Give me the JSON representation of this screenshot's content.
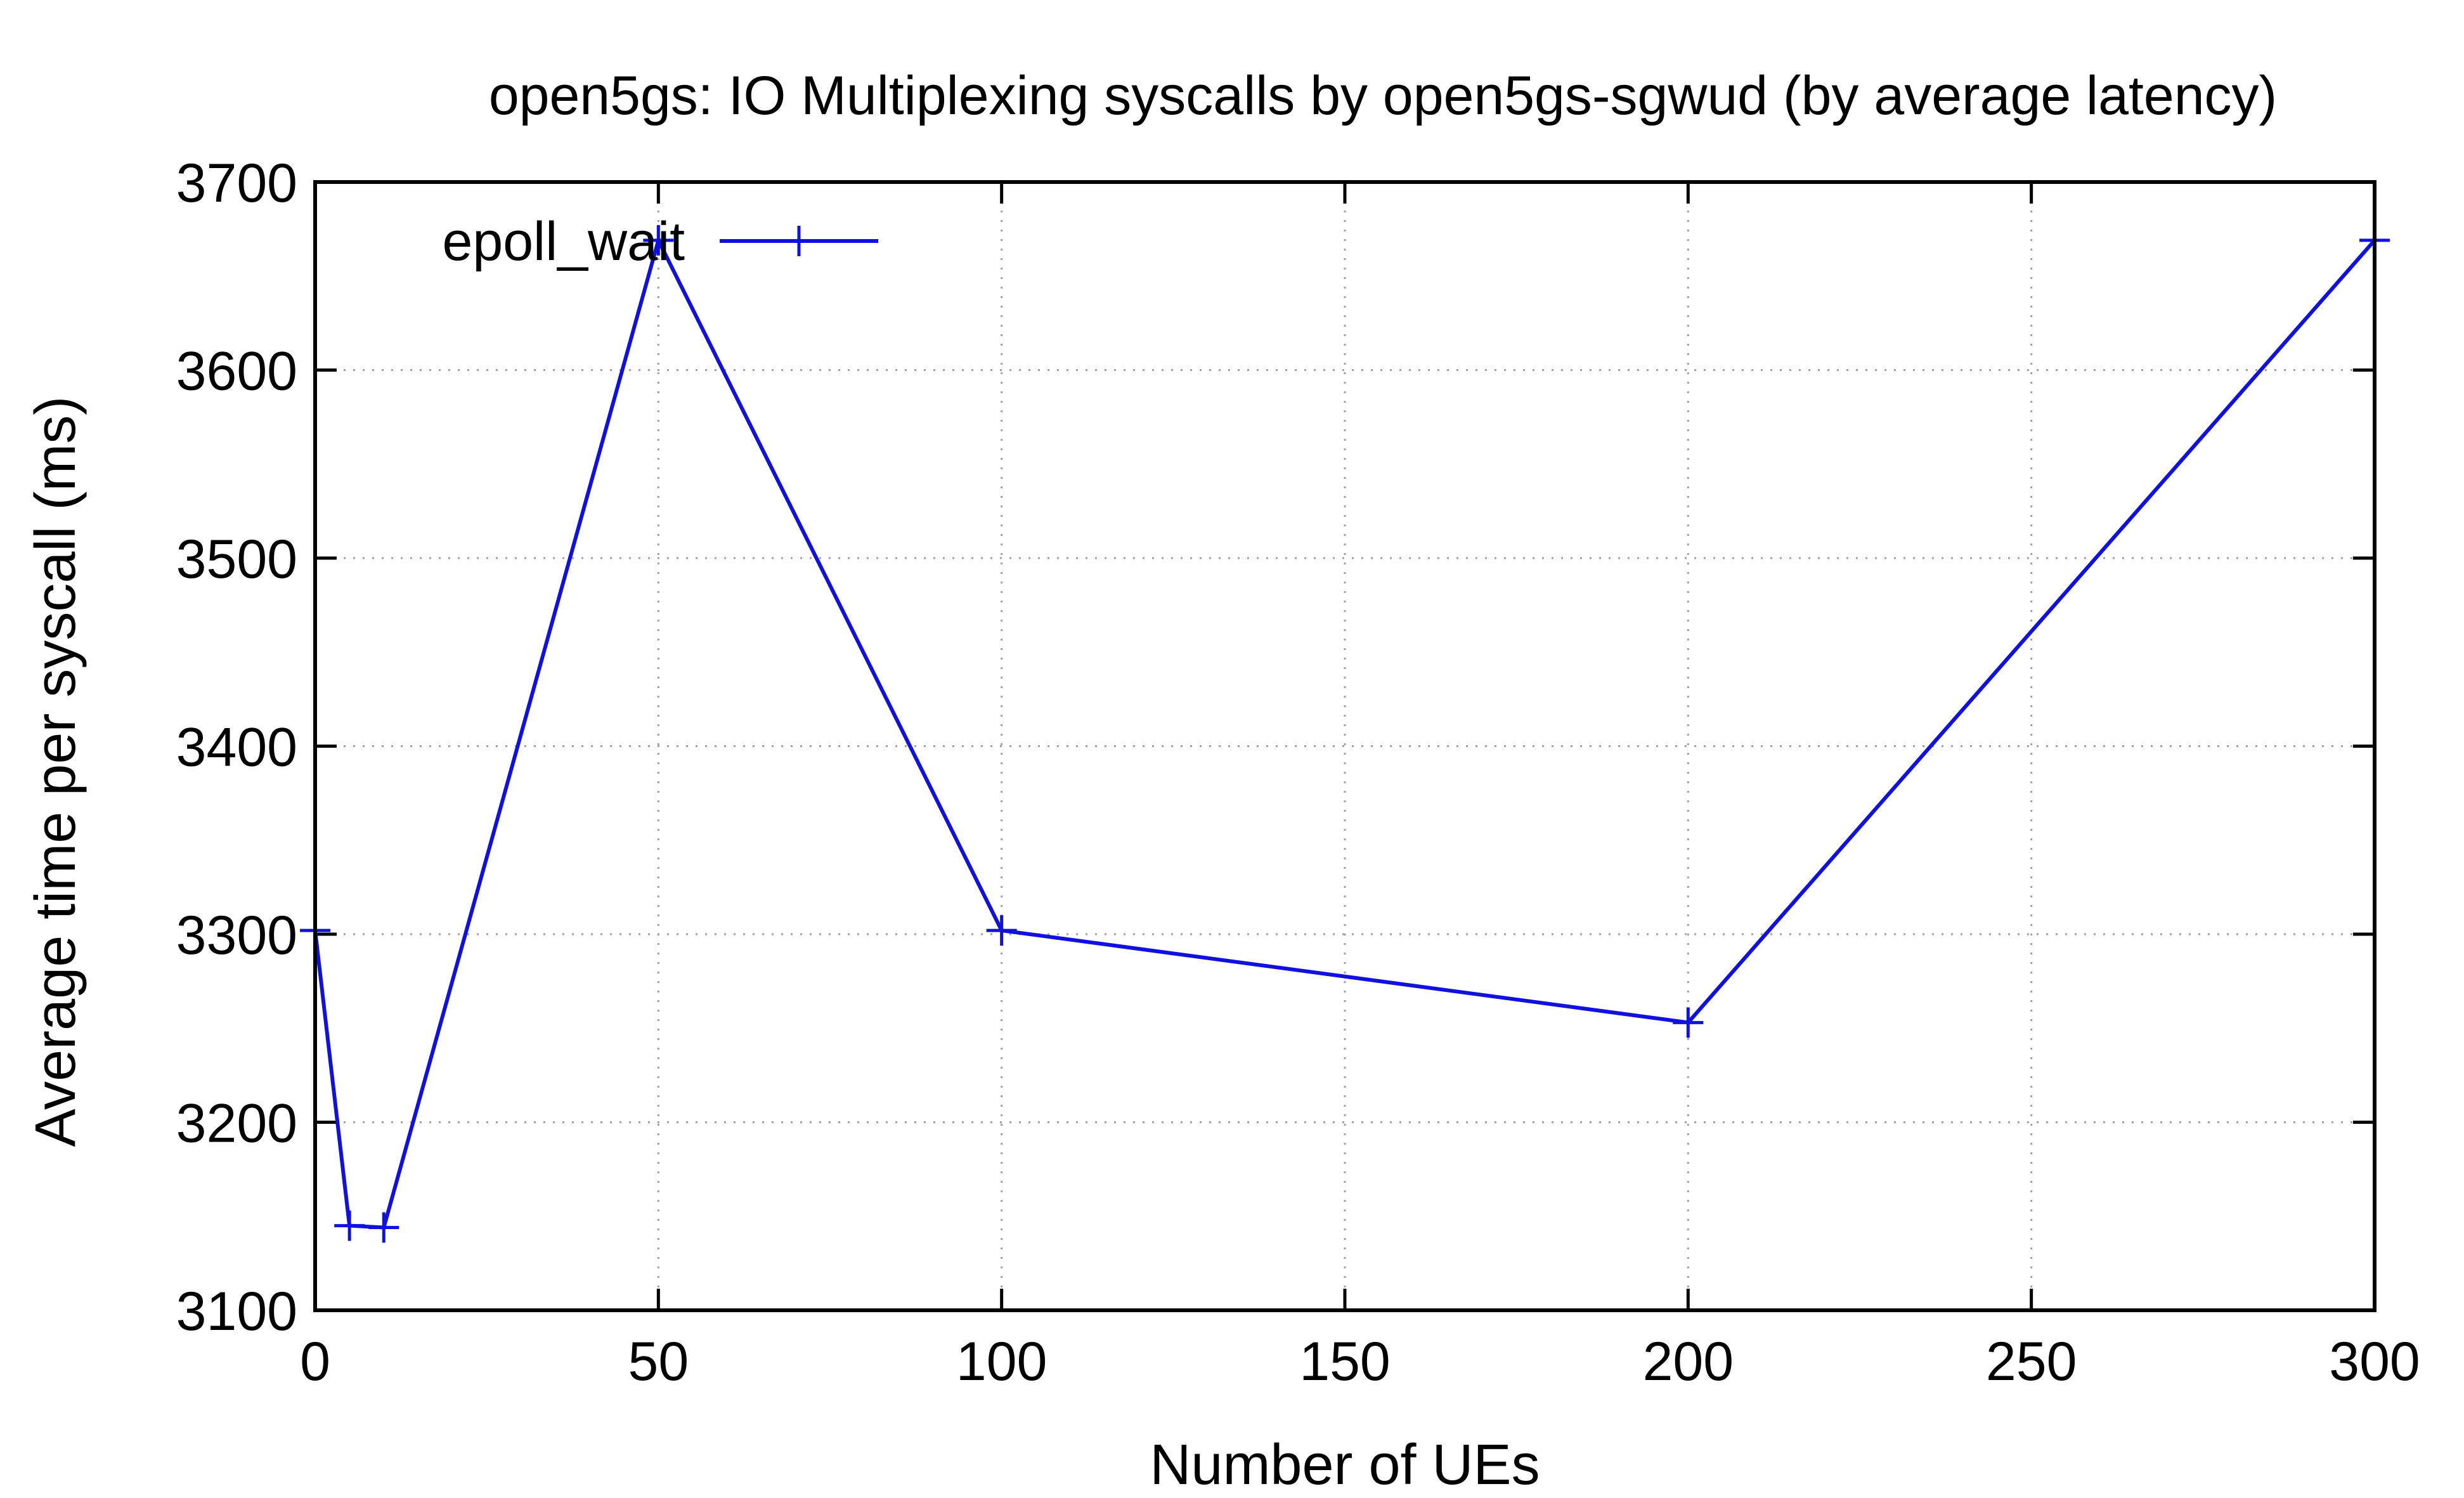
{
  "chart_data": {
    "type": "line",
    "title": "open5gs: IO Multiplexing syscalls by open5gs-sgwud (by average latency)",
    "xlabel": "Number of UEs",
    "ylabel": "Average time per syscall (ms)",
    "xlim": [
      0,
      300
    ],
    "ylim": [
      3100,
      3700
    ],
    "xticks": [
      0,
      50,
      100,
      150,
      200,
      250,
      300
    ],
    "yticks": [
      3100,
      3200,
      3300,
      3400,
      3500,
      3600,
      3700
    ],
    "grid": true,
    "legend_position": "top-left",
    "series": [
      {
        "name": "epoll_wait",
        "color": "#1010e0",
        "marker": "plus",
        "x": [
          0,
          5,
          10,
          50,
          100,
          200,
          300
        ],
        "y": [
          3302,
          3145,
          3144,
          3669,
          3302,
          3253,
          3669
        ]
      }
    ]
  }
}
